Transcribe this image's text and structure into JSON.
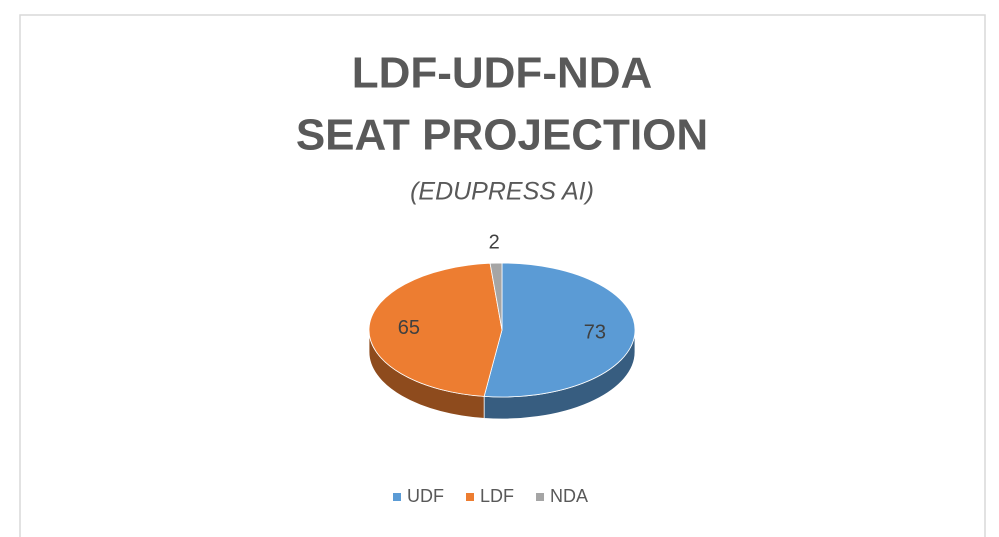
{
  "chart_data": {
    "type": "pie3d",
    "title": [
      "LDF-UDF-NDA",
      "SEAT PROJECTION"
    ],
    "subtitle": "(EDUPRESS AI)",
    "categories": [
      "UDF",
      "LDF",
      "NDA"
    ],
    "values": [
      73,
      65,
      2
    ],
    "colors": [
      "#5b9bd5",
      "#ed7d31",
      "#a5a5a5"
    ],
    "legend": "bottom"
  }
}
